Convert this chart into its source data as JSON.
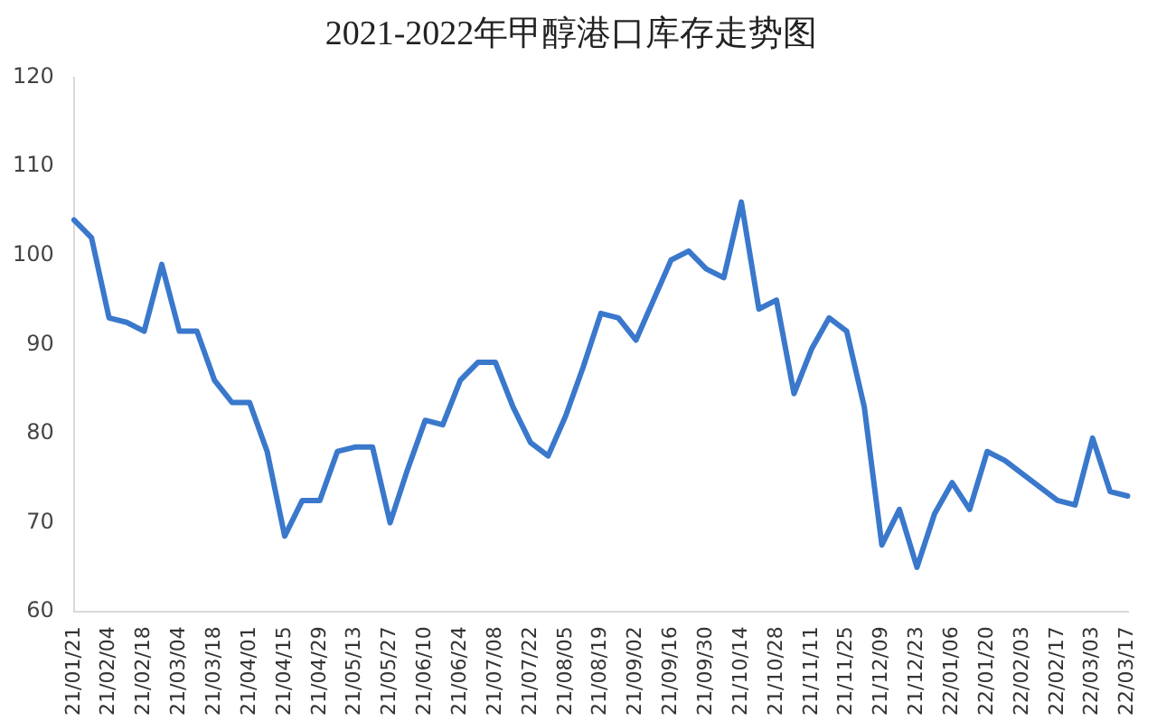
{
  "chart_data": {
    "type": "line",
    "title": "2021-2022年甲醇港口库存走势图",
    "categories": [
      "21/01/21",
      null,
      "21/02/04",
      null,
      "21/02/18",
      null,
      "21/03/04",
      null,
      "21/03/18",
      null,
      "21/04/01",
      null,
      "21/04/15",
      null,
      "21/04/29",
      null,
      "21/05/13",
      null,
      "21/05/27",
      null,
      "21/06/10",
      null,
      "21/06/24",
      null,
      "21/07/08",
      null,
      "21/07/22",
      null,
      "21/08/05",
      null,
      "21/08/19",
      null,
      "21/09/02",
      null,
      "21/09/16",
      null,
      "21/09/30",
      null,
      "21/10/14",
      null,
      "21/10/28",
      null,
      "21/11/11",
      null,
      "21/11/25",
      null,
      "21/12/09",
      null,
      "21/12/23",
      null,
      "22/01/06",
      null,
      "22/01/20",
      null,
      "22/02/03",
      null,
      "22/02/17",
      null,
      "22/03/03",
      null,
      "22/03/17"
    ],
    "series": [
      {
        "color": "#3a78cc",
        "values": [
          104,
          102,
          93,
          92.5,
          91.5,
          99,
          91.5,
          91.5,
          86,
          83.5,
          83.5,
          78,
          68.5,
          72.5,
          72.5,
          78,
          78.5,
          78.5,
          70,
          76,
          81.5,
          81,
          86,
          88,
          88,
          83,
          79,
          77.5,
          82,
          87.5,
          93.5,
          93,
          90.5,
          95,
          99.5,
          100.5,
          98.5,
          97.5,
          106,
          94,
          95,
          84.5,
          89.5,
          93,
          91.5,
          83,
          67.5,
          71.5,
          65,
          71,
          74.5,
          71.5,
          78,
          77,
          75.5,
          74,
          72.5,
          72,
          79.5,
          73.5,
          73
        ]
      }
    ],
    "ylim": [
      60,
      120
    ],
    "yticks": [
      60,
      70,
      80,
      90,
      100,
      110,
      120
    ],
    "grid": false,
    "legend": false,
    "marker": "none",
    "line_style": "solid"
  }
}
